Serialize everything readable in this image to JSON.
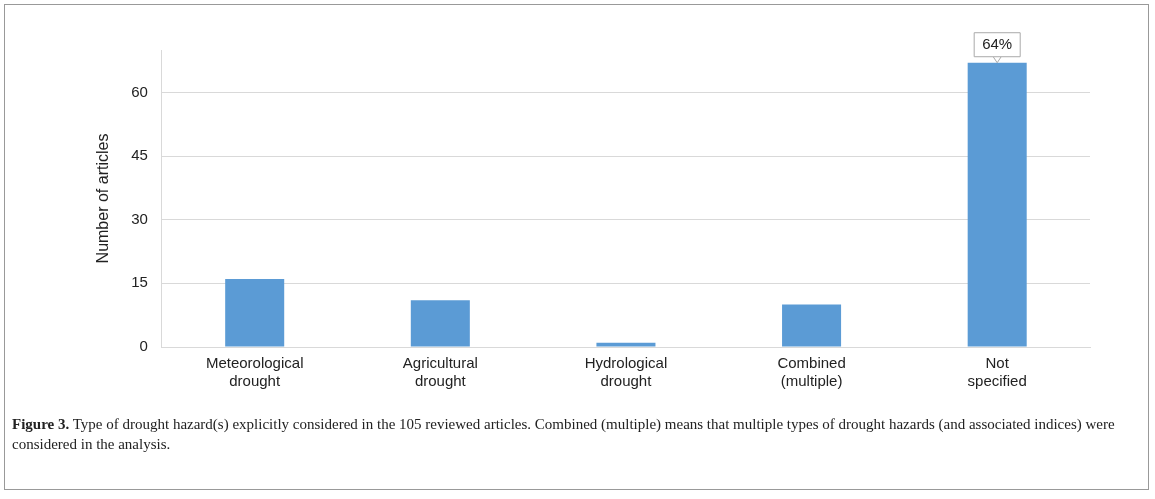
{
  "chart_data": {
    "type": "bar",
    "ylabel": "Number of articles",
    "categories": [
      "Meteorological\ndrought",
      "Agricultural\ndrought",
      "Hydrological\ndrought",
      "Combined\n(multiple)",
      "Not\nspecified"
    ],
    "values": [
      16,
      11,
      1,
      10,
      67
    ],
    "color": "#5b9bd5",
    "ylim": [
      0,
      70
    ],
    "yticks": [
      0,
      15,
      30,
      45,
      60
    ],
    "grid": "y",
    "legend": false,
    "annotations": [
      {
        "text": "64%",
        "x": "Not\nspecified",
        "y": 67
      },
      "Figure 3. Type of drought hazard(s) explicitly considered in the 105 reviewed articles. Combined (multiple) means that multiple types of drought hazards (and associated indices) were considered in the analysis."
    ]
  }
}
